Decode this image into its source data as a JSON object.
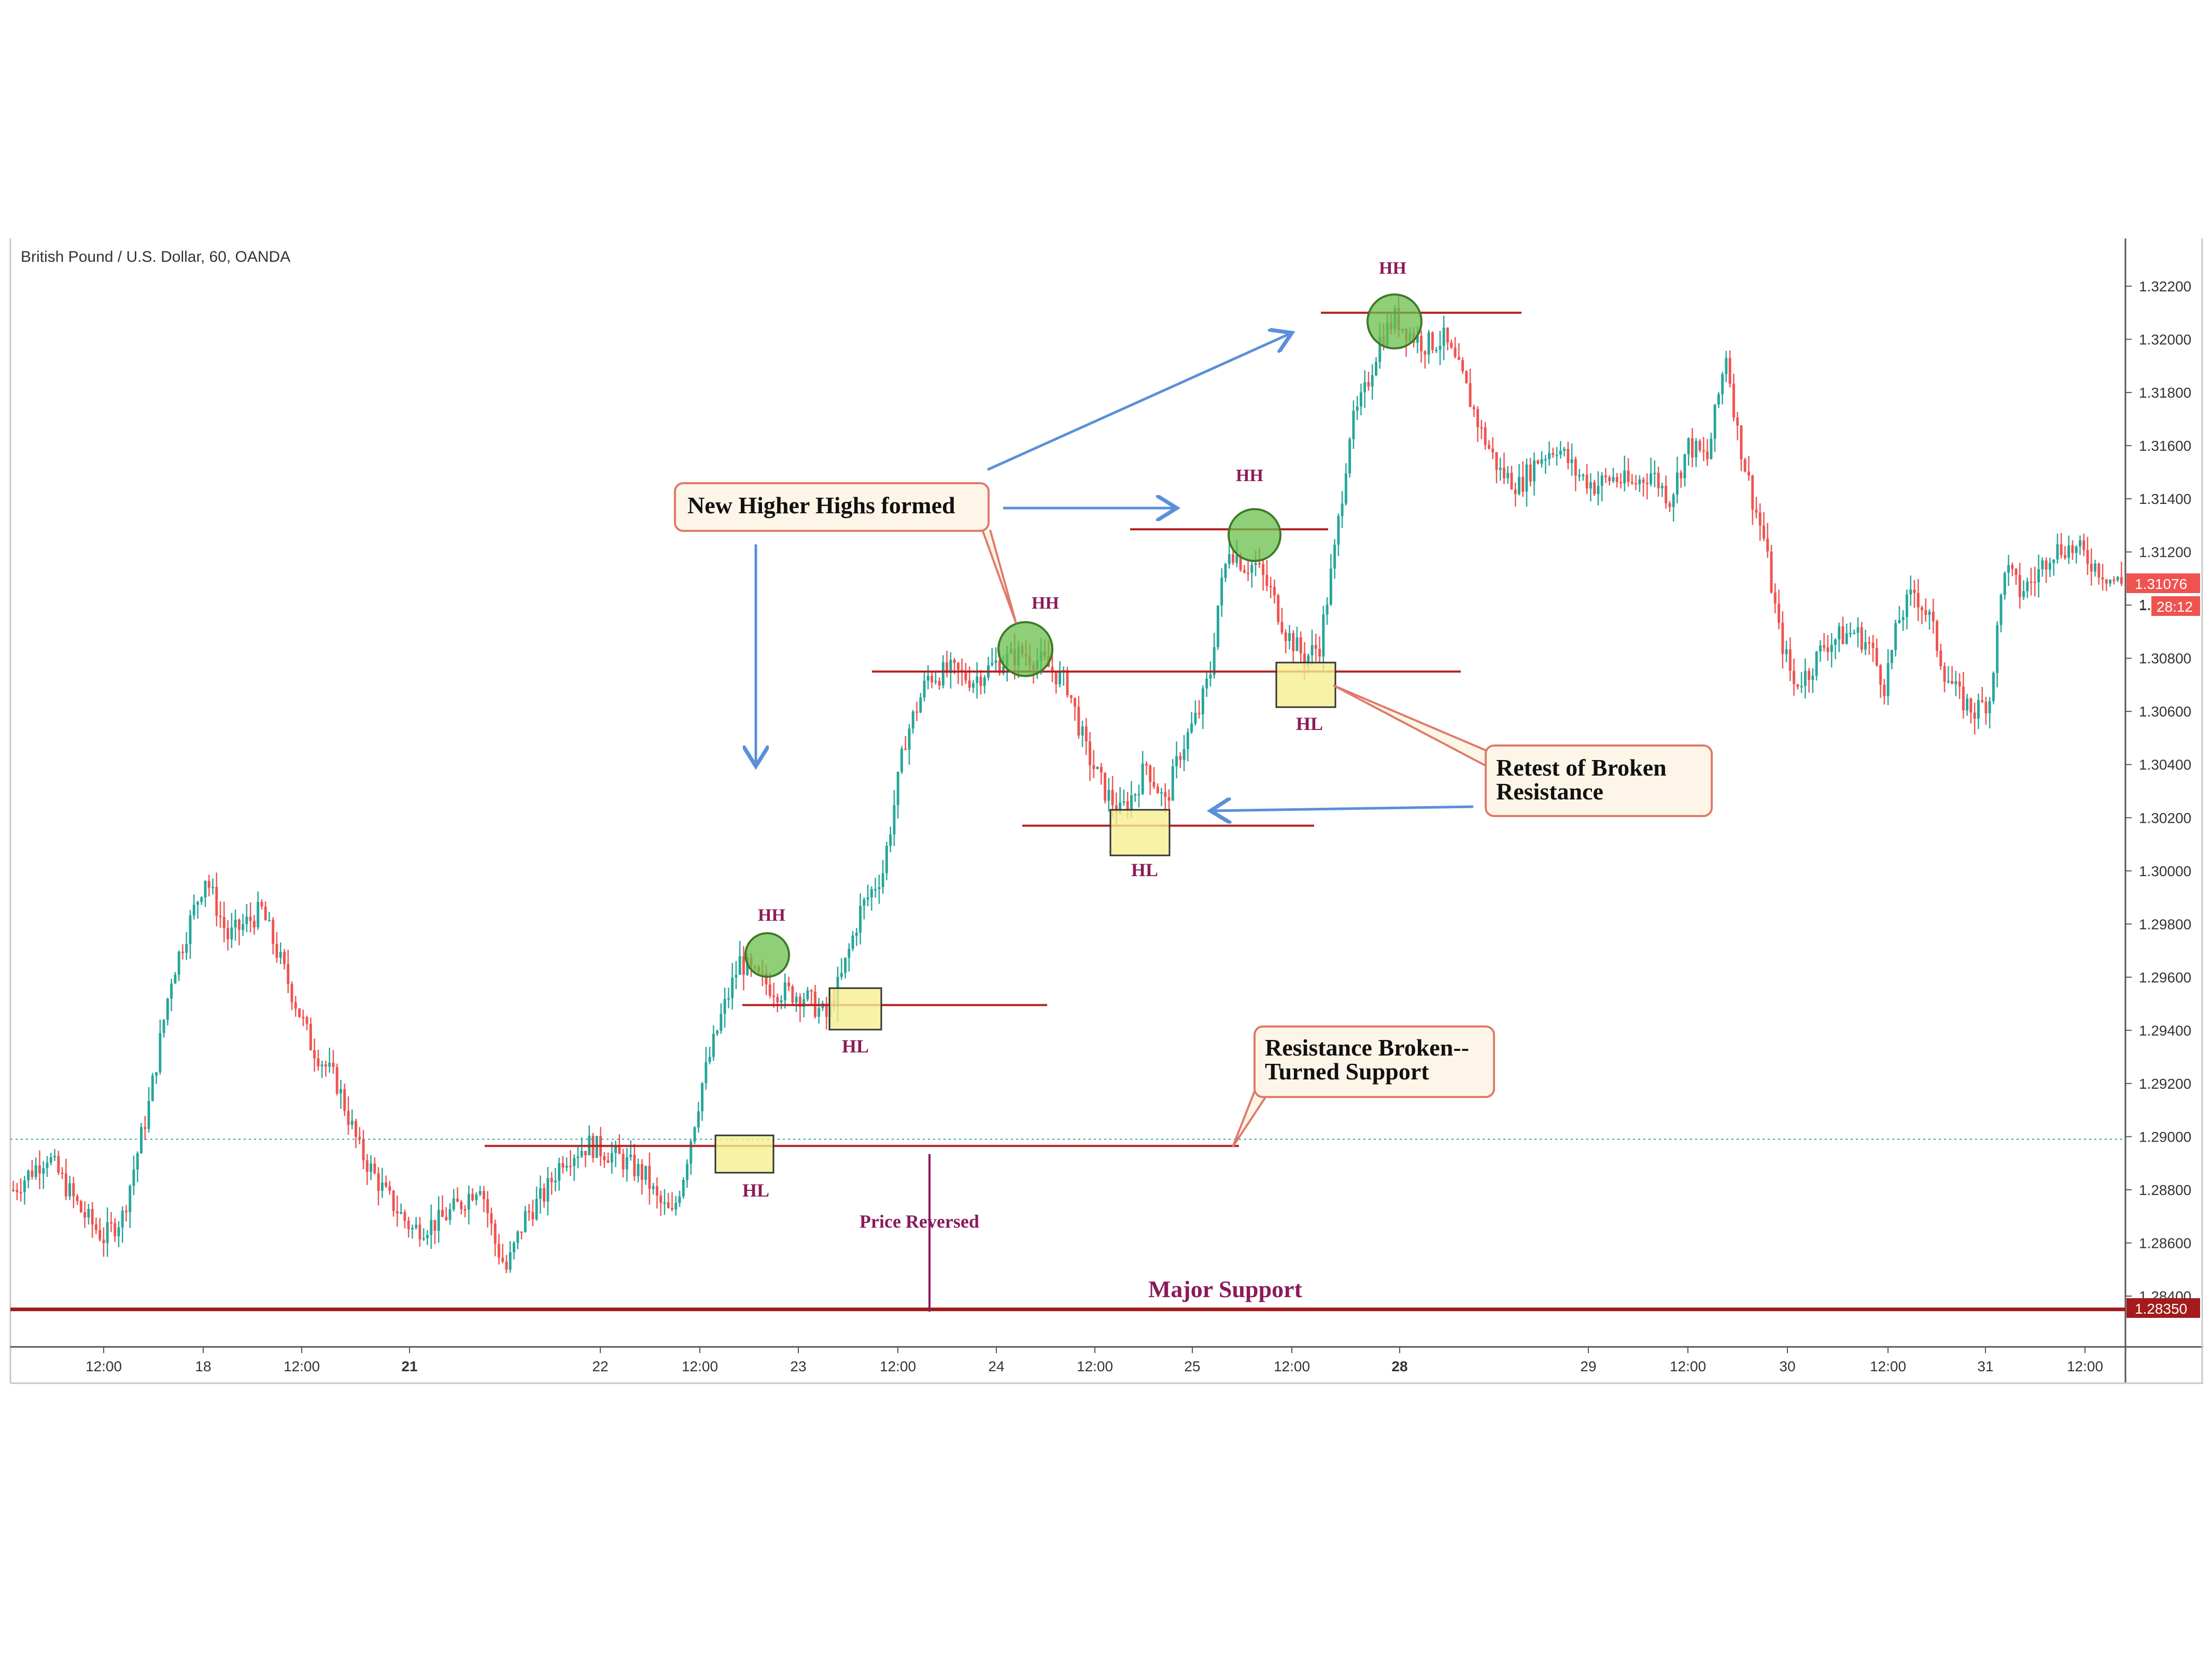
{
  "header": {
    "symbol_title": "British Pound / U.S. Dollar, 60, OANDA"
  },
  "colors": {
    "up": "#26a69a",
    "down": "#ef5350",
    "level_line": "#b22222",
    "major_support": "#a31b1b",
    "annotation_text": "#8b1a5a",
    "arrow": "#5b8fd9",
    "callout_border": "#e07a6a",
    "callout_fill": "#fdf5e8",
    "hh_circle": "#6abf4b",
    "hl_box": "#f5ef8f"
  },
  "chart_data": {
    "type": "candlestick",
    "title": "British Pound / U.S. Dollar, 60, OANDA",
    "ylim": [
      1.2825,
      1.3235
    ],
    "y_ticks": [
      "1.32200",
      "1.32000",
      "1.31800",
      "1.31600",
      "1.31400",
      "1.31200",
      "1.31000",
      "1.30800",
      "1.30600",
      "1.30400",
      "1.30200",
      "1.30000",
      "1.29800",
      "1.29600",
      "1.29400",
      "1.29200",
      "1.29000",
      "1.28800",
      "1.28600",
      "1.28400"
    ],
    "x_ticks": [
      "12:00",
      "18",
      "12:00",
      "21",
      "22",
      "12:00",
      "23",
      "12:00",
      "24",
      "12:00",
      "25",
      "12:00",
      "28",
      "29",
      "12:00",
      "30",
      "12:00",
      "31",
      "12:00"
    ],
    "bold_x_ticks": [
      "21",
      "28"
    ],
    "price_labels": {
      "last_price": "1.31076",
      "countdown": "28:12",
      "major_support": "1.28350",
      "partial_tick": "1."
    },
    "grid": false,
    "series_path": [
      [
        0,
        1.288
      ],
      [
        9,
        1.2893
      ],
      [
        18,
        1.2872
      ],
      [
        24,
        1.2862
      ],
      [
        29,
        1.287
      ],
      [
        36,
        1.2912
      ],
      [
        42,
        1.296
      ],
      [
        51,
        1.2998
      ],
      [
        57,
        1.2975
      ],
      [
        66,
        1.2985
      ],
      [
        72,
        1.2962
      ],
      [
        79,
        1.2935
      ],
      [
        86,
        1.292
      ],
      [
        92,
        1.2895
      ],
      [
        99,
        1.2878
      ],
      [
        106,
        1.2865
      ],
      [
        113,
        1.2868
      ],
      [
        119,
        1.2875
      ],
      [
        124,
        1.2883
      ],
      [
        128,
        1.286
      ],
      [
        131,
        1.285
      ],
      [
        136,
        1.287
      ],
      [
        141,
        1.2878
      ],
      [
        146,
        1.2892
      ],
      [
        153,
        1.2897
      ],
      [
        161,
        1.2892
      ],
      [
        168,
        1.2885
      ],
      [
        171,
        1.2876
      ],
      [
        175,
        1.287
      ],
      [
        178,
        1.2886
      ],
      [
        183,
        1.292
      ],
      [
        188,
        1.2945
      ],
      [
        193,
        1.2966
      ],
      [
        197,
        1.296
      ],
      [
        203,
        1.2955
      ],
      [
        210,
        1.2953
      ],
      [
        216,
        1.2945
      ],
      [
        220,
        1.296
      ],
      [
        225,
        1.2985
      ],
      [
        231,
        1.3
      ],
      [
        237,
        1.305
      ],
      [
        243,
        1.3073
      ],
      [
        249,
        1.3075
      ],
      [
        255,
        1.3072
      ],
      [
        261,
        1.3078
      ],
      [
        268,
        1.3082
      ],
      [
        274,
        1.3078
      ],
      [
        280,
        1.307
      ],
      [
        285,
        1.3045
      ],
      [
        290,
        1.303
      ],
      [
        294,
        1.3022
      ],
      [
        298,
        1.303
      ],
      [
        301,
        1.304
      ],
      [
        306,
        1.3025
      ],
      [
        310,
        1.3045
      ],
      [
        315,
        1.306
      ],
      [
        318,
        1.3075
      ],
      [
        320,
        1.31
      ],
      [
        323,
        1.3122
      ],
      [
        327,
        1.3115
      ],
      [
        330,
        1.3115
      ],
      [
        334,
        1.3105
      ],
      [
        338,
        1.309
      ],
      [
        343,
        1.308
      ],
      [
        347,
        1.3085
      ],
      [
        351,
        1.312
      ],
      [
        355,
        1.3165
      ],
      [
        359,
        1.318
      ],
      [
        363,
        1.32
      ],
      [
        367,
        1.3208
      ],
      [
        371,
        1.3202
      ],
      [
        375,
        1.3198
      ],
      [
        380,
        1.32
      ],
      [
        385,
        1.3185
      ],
      [
        390,
        1.3165
      ],
      [
        395,
        1.315
      ],
      [
        400,
        1.3145
      ],
      [
        405,
        1.3155
      ],
      [
        410,
        1.316
      ],
      [
        415,
        1.315
      ],
      [
        420,
        1.3145
      ],
      [
        425,
        1.3148
      ],
      [
        430,
        1.3145
      ],
      [
        435,
        1.315
      ],
      [
        440,
        1.314
      ],
      [
        445,
        1.316
      ],
      [
        450,
        1.3155
      ],
      [
        455,
        1.3195
      ],
      [
        458,
        1.3165
      ],
      [
        462,
        1.314
      ],
      [
        465,
        1.3125
      ],
      [
        469,
        1.309
      ],
      [
        473,
        1.307
      ],
      [
        477,
        1.3075
      ],
      [
        481,
        1.3085
      ],
      [
        485,
        1.3088
      ],
      [
        489,
        1.309
      ],
      [
        493,
        1.3085
      ],
      [
        497,
        1.307
      ],
      [
        501,
        1.3095
      ],
      [
        505,
        1.3105
      ],
      [
        509,
        1.3095
      ],
      [
        513,
        1.3075
      ],
      [
        517,
        1.3065
      ],
      [
        521,
        1.306
      ],
      [
        525,
        1.3065
      ],
      [
        529,
        1.3115
      ],
      [
        533,
        1.3105
      ],
      [
        537,
        1.311
      ],
      [
        541,
        1.312
      ],
      [
        545,
        1.3122
      ],
      [
        549,
        1.312
      ],
      [
        553,
        1.3115
      ],
      [
        557,
        1.311
      ],
      [
        560,
        1.3108
      ]
    ],
    "levels": [
      {
        "name": "major-support",
        "value": 1.2835
      },
      {
        "name": "resistance-turned-support",
        "value": 1.28965
      },
      {
        "name": "hl-1",
        "value": 1.29495
      },
      {
        "name": "hl-2-retest",
        "value": 1.3075
      },
      {
        "name": "hl-3",
        "value": 1.3017
      },
      {
        "name": "hh-3",
        "value": 1.31285
      },
      {
        "name": "hh-top",
        "value": 1.321
      }
    ],
    "annotations": {
      "hh": "HH",
      "hl": "HL",
      "new_higher_highs": "New Higher Highs formed",
      "retest": "Retest of Broken Resistance",
      "retest_l1": "Retest of Broken",
      "retest_l2": "Resistance",
      "res_broken_l1": "Resistance Broken--",
      "res_broken_l2": "Turned Support",
      "price_reversed": "Price Reversed",
      "major_support": "Major Support"
    }
  }
}
